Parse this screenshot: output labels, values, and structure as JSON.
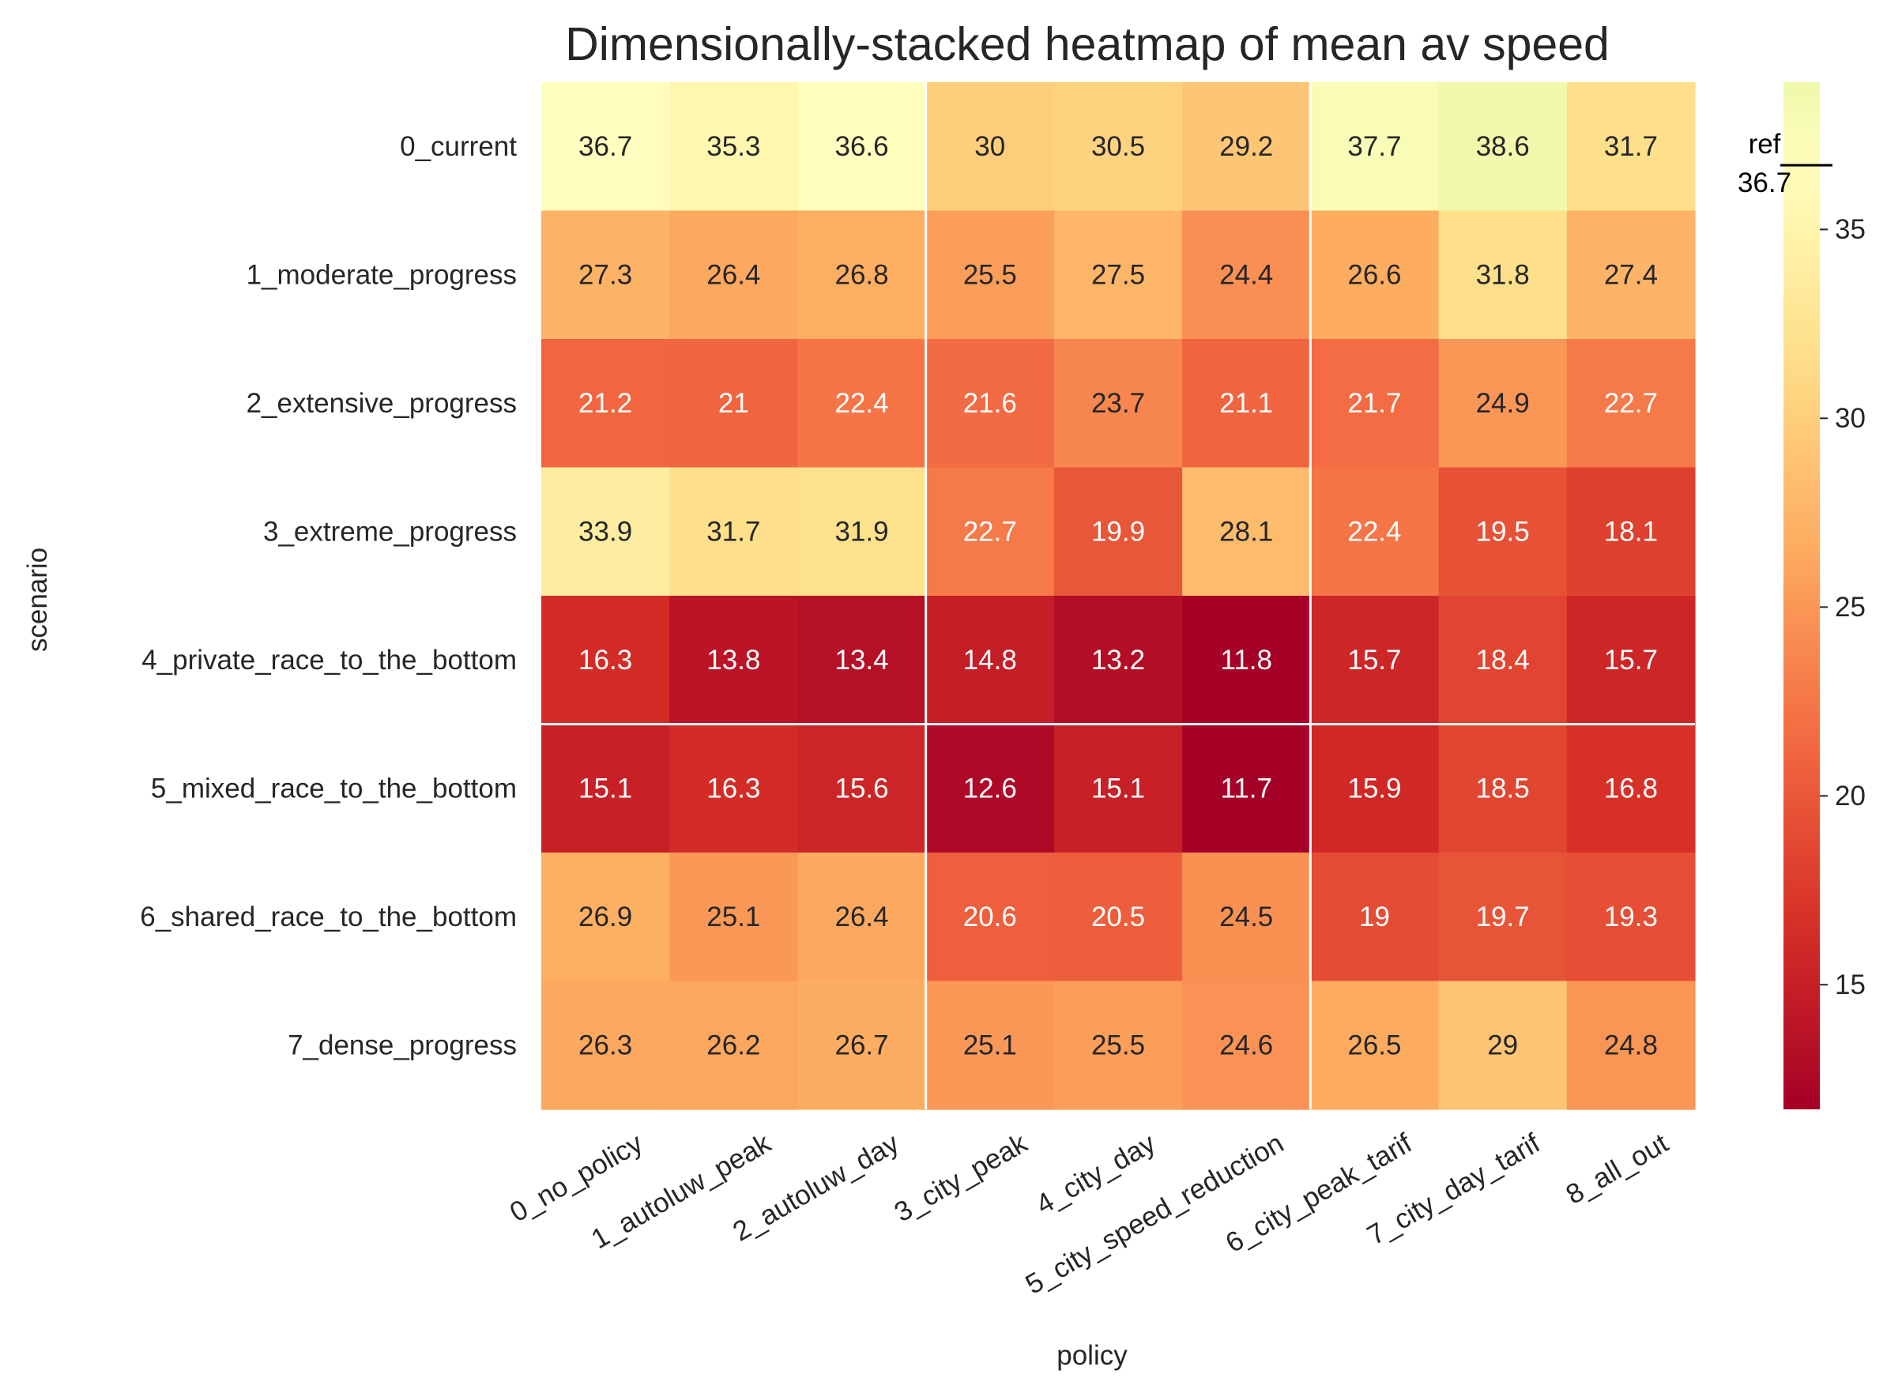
{
  "chart_data": {
    "type": "heatmap",
    "title": "Dimensionally-stacked heatmap of mean av speed",
    "xlabel": "policy",
    "ylabel": "scenario",
    "x_categories": [
      "0_no_policy",
      "1_autoluw_peak",
      "2_autoluw_day",
      "3_city_peak",
      "4_city_day",
      "5_city_speed_reduction",
      "6_city_peak_tarif",
      "7_city_day_tarif",
      "8_all_out"
    ],
    "y_categories": [
      "0_current",
      "1_moderate_progress",
      "2_extensive_progress",
      "3_extreme_progress",
      "4_private_race_to_the_bottom",
      "5_mixed_race_to_the_bottom",
      "6_shared_race_to_the_bottom",
      "7_dense_progress"
    ],
    "values": [
      [
        36.7,
        35.3,
        36.6,
        30,
        30.5,
        29.2,
        37.7,
        38.6,
        31.7
      ],
      [
        27.3,
        26.4,
        26.8,
        25.5,
        27.5,
        24.4,
        26.6,
        31.8,
        27.4
      ],
      [
        21.2,
        21,
        22.4,
        21.6,
        23.7,
        21.1,
        21.7,
        24.9,
        22.7
      ],
      [
        33.9,
        31.7,
        31.9,
        22.7,
        19.9,
        28.1,
        22.4,
        19.5,
        18.1
      ],
      [
        16.3,
        13.8,
        13.4,
        14.8,
        13.2,
        11.8,
        15.7,
        18.4,
        15.7
      ],
      [
        15.1,
        16.3,
        15.6,
        12.6,
        15.1,
        11.7,
        15.9,
        18.5,
        16.8
      ],
      [
        26.9,
        25.1,
        26.4,
        20.6,
        20.5,
        24.5,
        19,
        19.7,
        19.3
      ],
      [
        26.3,
        26.2,
        26.7,
        25.1,
        25.5,
        24.6,
        26.5,
        29,
        24.8
      ]
    ],
    "colormap": "RdYlGn (red → yellow)",
    "color_range": [
      11.7,
      38.9
    ],
    "colorbar": {
      "ticks": [
        15,
        20,
        25,
        30,
        35
      ],
      "reference_label": "ref",
      "reference_value": 36.7
    },
    "separator_after_columns": [
      2,
      5
    ],
    "separator_after_rows": [
      4
    ],
    "colors": {
      "low": "#a50026",
      "high": "#e6f598",
      "light_text": "#ffffff",
      "dark_text": "#262626",
      "separator": "#ffffff"
    }
  }
}
